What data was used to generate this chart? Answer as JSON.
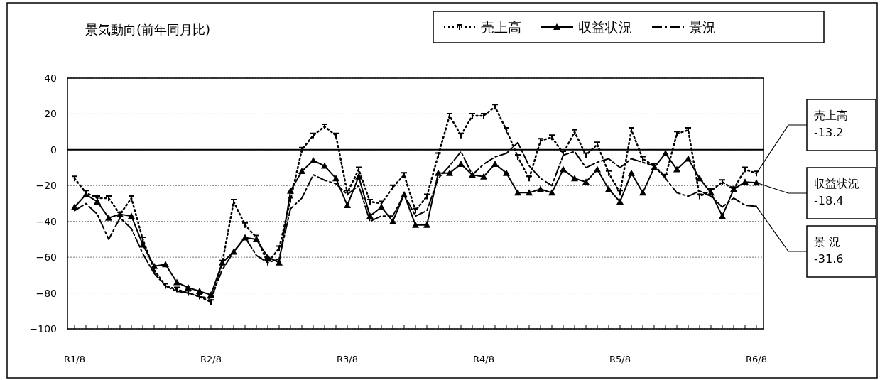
{
  "chart_data": {
    "type": "line",
    "title": "景気動向(前年同月比)",
    "categories": [
      "R1/8",
      null,
      null,
      null,
      null,
      null,
      null,
      null,
      null,
      null,
      null,
      null,
      "R2/8",
      null,
      null,
      null,
      null,
      null,
      null,
      null,
      null,
      null,
      null,
      null,
      "R3/8",
      null,
      null,
      null,
      null,
      null,
      null,
      null,
      null,
      null,
      null,
      null,
      "R4/8",
      null,
      null,
      null,
      null,
      null,
      null,
      null,
      null,
      null,
      null,
      null,
      "R5/8",
      null,
      null,
      null,
      null,
      null,
      null,
      null,
      null,
      null,
      null,
      null,
      "R6/8"
    ],
    "series": [
      {
        "name": "売上高",
        "color": "#000000",
        "line_style": "dotted",
        "marker": "cross",
        "values": [
          -16,
          -24,
          -27,
          -27,
          -36,
          -27,
          -50,
          -67,
          -76,
          -78,
          -80,
          -82,
          -85,
          -63,
          -29,
          -42,
          -49,
          -63,
          -55,
          -28,
          0,
          8,
          13,
          8,
          -24,
          -11,
          -29,
          -30,
          -21,
          -14,
          -34,
          -26,
          -3,
          19,
          8,
          19,
          19,
          24,
          11,
          -4,
          -16,
          5,
          7,
          -2,
          10,
          -3,
          3,
          -13,
          -24,
          11,
          -5,
          -9,
          -15,
          9,
          11,
          -26,
          -23,
          -18,
          -22,
          -11,
          -13.2
        ]
      },
      {
        "name": "収益状況",
        "color": "#000000",
        "line_style": "solid",
        "marker": "triangle",
        "values": [
          -32,
          -25,
          -29,
          -38,
          -36,
          -37,
          -53,
          -65,
          -64,
          -74,
          -77,
          -79,
          -81,
          -63,
          -57,
          -49,
          -50,
          -60,
          -63,
          -23,
          -12,
          -6,
          -9,
          -16,
          -31,
          -15,
          -37,
          -32,
          -40,
          -25,
          -42,
          -42,
          -13,
          -13,
          -8,
          -14,
          -15,
          -8,
          -13,
          -24,
          -24,
          -22,
          -24,
          -11,
          -16,
          -18,
          -11,
          -22,
          -29,
          -13,
          -24,
          -10,
          -2,
          -11,
          -5,
          -16,
          -24,
          -37,
          -22,
          -18,
          -18.4
        ]
      },
      {
        "name": "景況",
        "color": "#000000",
        "line_style": "dashed",
        "marker": "none",
        "values": [
          -34,
          -30,
          -36,
          -50,
          -38,
          -44,
          -58,
          -69,
          -76,
          -79,
          -80,
          -82,
          -83,
          -67,
          -57,
          -49,
          -59,
          -63,
          -61,
          -33,
          -27,
          -14,
          -17,
          -19,
          -25,
          -20,
          -40,
          -37,
          -37,
          -25,
          -37,
          -34,
          -16,
          -9,
          -1,
          -14,
          -8,
          -4,
          -2,
          4,
          -9,
          -16,
          -20,
          -3,
          -1,
          -10,
          -7,
          -5,
          -10,
          -5,
          -7,
          -9,
          -16,
          -24,
          -26,
          -23,
          -26,
          -32,
          -27,
          -31,
          -31.6
        ]
      }
    ],
    "ylim": [
      -100,
      40
    ],
    "yticks": [
      -100,
      -80,
      -60,
      -40,
      -20,
      0,
      20,
      40
    ],
    "grid": "y",
    "legend": "top right",
    "ref_lines": [
      {
        "axis": "y",
        "value": 0,
        "color": "#000000",
        "line_style": "solid"
      }
    ],
    "annotations": [
      {
        "text": "売上高\n-13.2",
        "x": "R6/8",
        "y": -13.2
      },
      {
        "text": "収益状況\n-18.4",
        "x": "R6/8",
        "y": -18.4
      },
      {
        "text": "景 況\n-31.6",
        "x": "R6/8",
        "y": -31.6
      }
    ]
  }
}
